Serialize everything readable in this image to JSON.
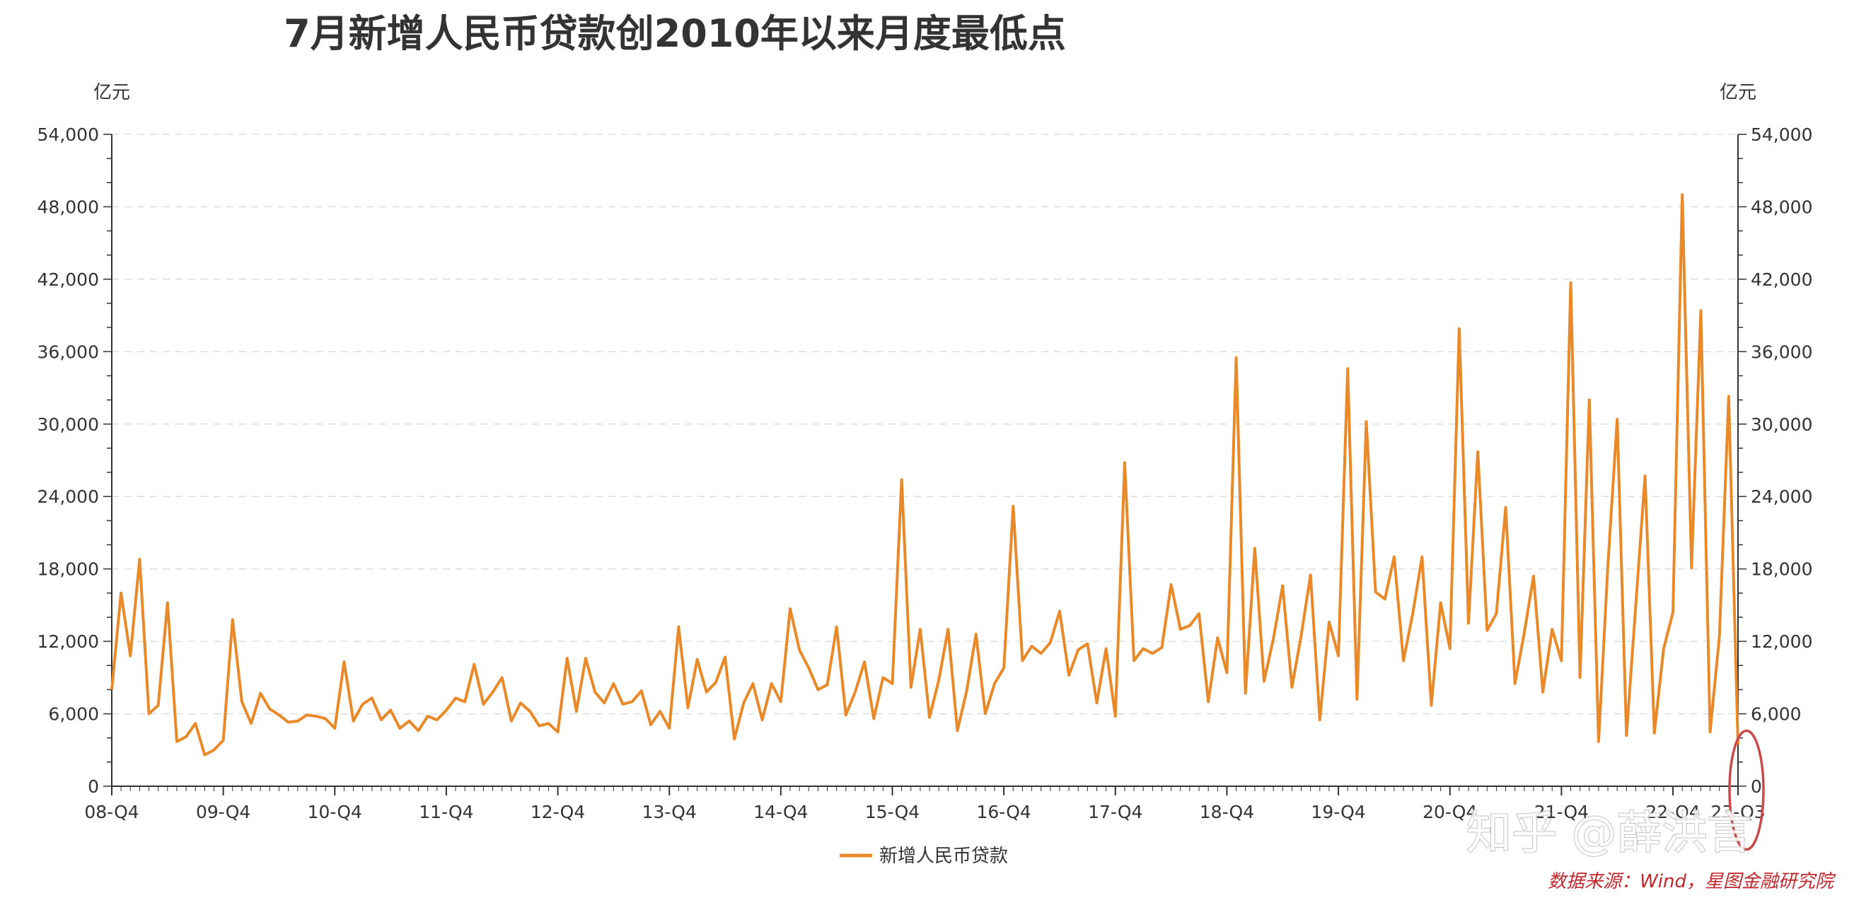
{
  "title": "7月新增人民币贷款创2010年以来月度最低点",
  "left_unit": "亿元",
  "right_unit": "亿元",
  "source": "数据来源：Wind，星图金融研究院",
  "watermark": "知乎 @薛洪言",
  "colors": {
    "line": "#E8892A",
    "annotation": "#C94A4A",
    "source": "#C0272D",
    "grid": "#DDDDDD"
  },
  "chart_data": {
    "type": "line",
    "title": "7月新增人民币贷款创2010年以来月度最低点",
    "ylabel": "亿元",
    "ylim": [
      0,
      54000
    ],
    "y_ticks": [
      0,
      6000,
      12000,
      18000,
      24000,
      30000,
      36000,
      42000,
      48000,
      54000
    ],
    "y_tick_labels": [
      "0",
      "6,000",
      "12,000",
      "18,000",
      "24,000",
      "30,000",
      "36,000",
      "42,000",
      "48,000",
      "54,000"
    ],
    "x_tick_labels": [
      "08-Q4",
      "09-Q4",
      "10-Q4",
      "11-Q4",
      "12-Q4",
      "13-Q4",
      "14-Q4",
      "15-Q4",
      "16-Q4",
      "17-Q4",
      "18-Q4",
      "19-Q4",
      "20-Q4",
      "21-Q4",
      "22-Q4",
      "23-Q3"
    ],
    "grid": true,
    "legend_position": "bottom",
    "series": [
      {
        "name": "新增人民币贷款",
        "x_start": "2008-10",
        "x_end": "2023-07",
        "values": [
          8000,
          16000,
          10800,
          18800,
          6000,
          6700,
          15200,
          3700,
          4100,
          5200,
          2600,
          3000,
          3800,
          13800,
          7000,
          5200,
          7700,
          6400,
          5900,
          5300,
          5400,
          5900,
          5800,
          5600,
          4800,
          10300,
          5400,
          6800,
          7300,
          5500,
          6300,
          4800,
          5400,
          4600,
          5800,
          5500,
          6300,
          7300,
          7000,
          10100,
          6800,
          7800,
          9000,
          5400,
          6900,
          6200,
          5000,
          5200,
          4500,
          10600,
          6200,
          10600,
          7800,
          6900,
          8500,
          6800,
          7000,
          7900,
          5100,
          6200,
          4800,
          13200,
          6500,
          10500,
          7800,
          8600,
          10700,
          3900,
          6900,
          8500,
          5500,
          8500,
          7000,
          14700,
          11300,
          9800,
          8000,
          8400,
          13200,
          5900,
          7800,
          10300,
          5600,
          9000,
          8500,
          25400,
          8200,
          13000,
          5700,
          8800,
          13000,
          4600,
          7900,
          12600,
          6000,
          8500,
          9800,
          23200,
          10400,
          11600,
          11000,
          11900,
          14500,
          9200,
          11300,
          11800,
          6900,
          11400,
          5800,
          26800,
          10400,
          11400,
          11000,
          11500,
          16700,
          13000,
          13300,
          14300,
          7000,
          12300,
          9400,
          35500,
          7700,
          19700,
          8700,
          12200,
          16600,
          8200,
          12500,
          17500,
          5500,
          13600,
          10800,
          34600,
          7200,
          30200,
          16100,
          15500,
          19000,
          10400,
          14300,
          19000,
          6700,
          15200,
          11400,
          37900,
          13500,
          27700,
          12900,
          14300,
          23100,
          8500,
          12700,
          17400,
          7800,
          13000,
          10400,
          41700,
          9000,
          32000,
          3700,
          18300,
          30400,
          4200,
          15000,
          25700,
          4400,
          11400,
          14400,
          49000,
          18100,
          39400,
          4500,
          12400,
          32300,
          3459
        ]
      }
    ],
    "annotations": [
      {
        "type": "ellipse",
        "target": "2023-07",
        "value": 3459
      }
    ]
  }
}
